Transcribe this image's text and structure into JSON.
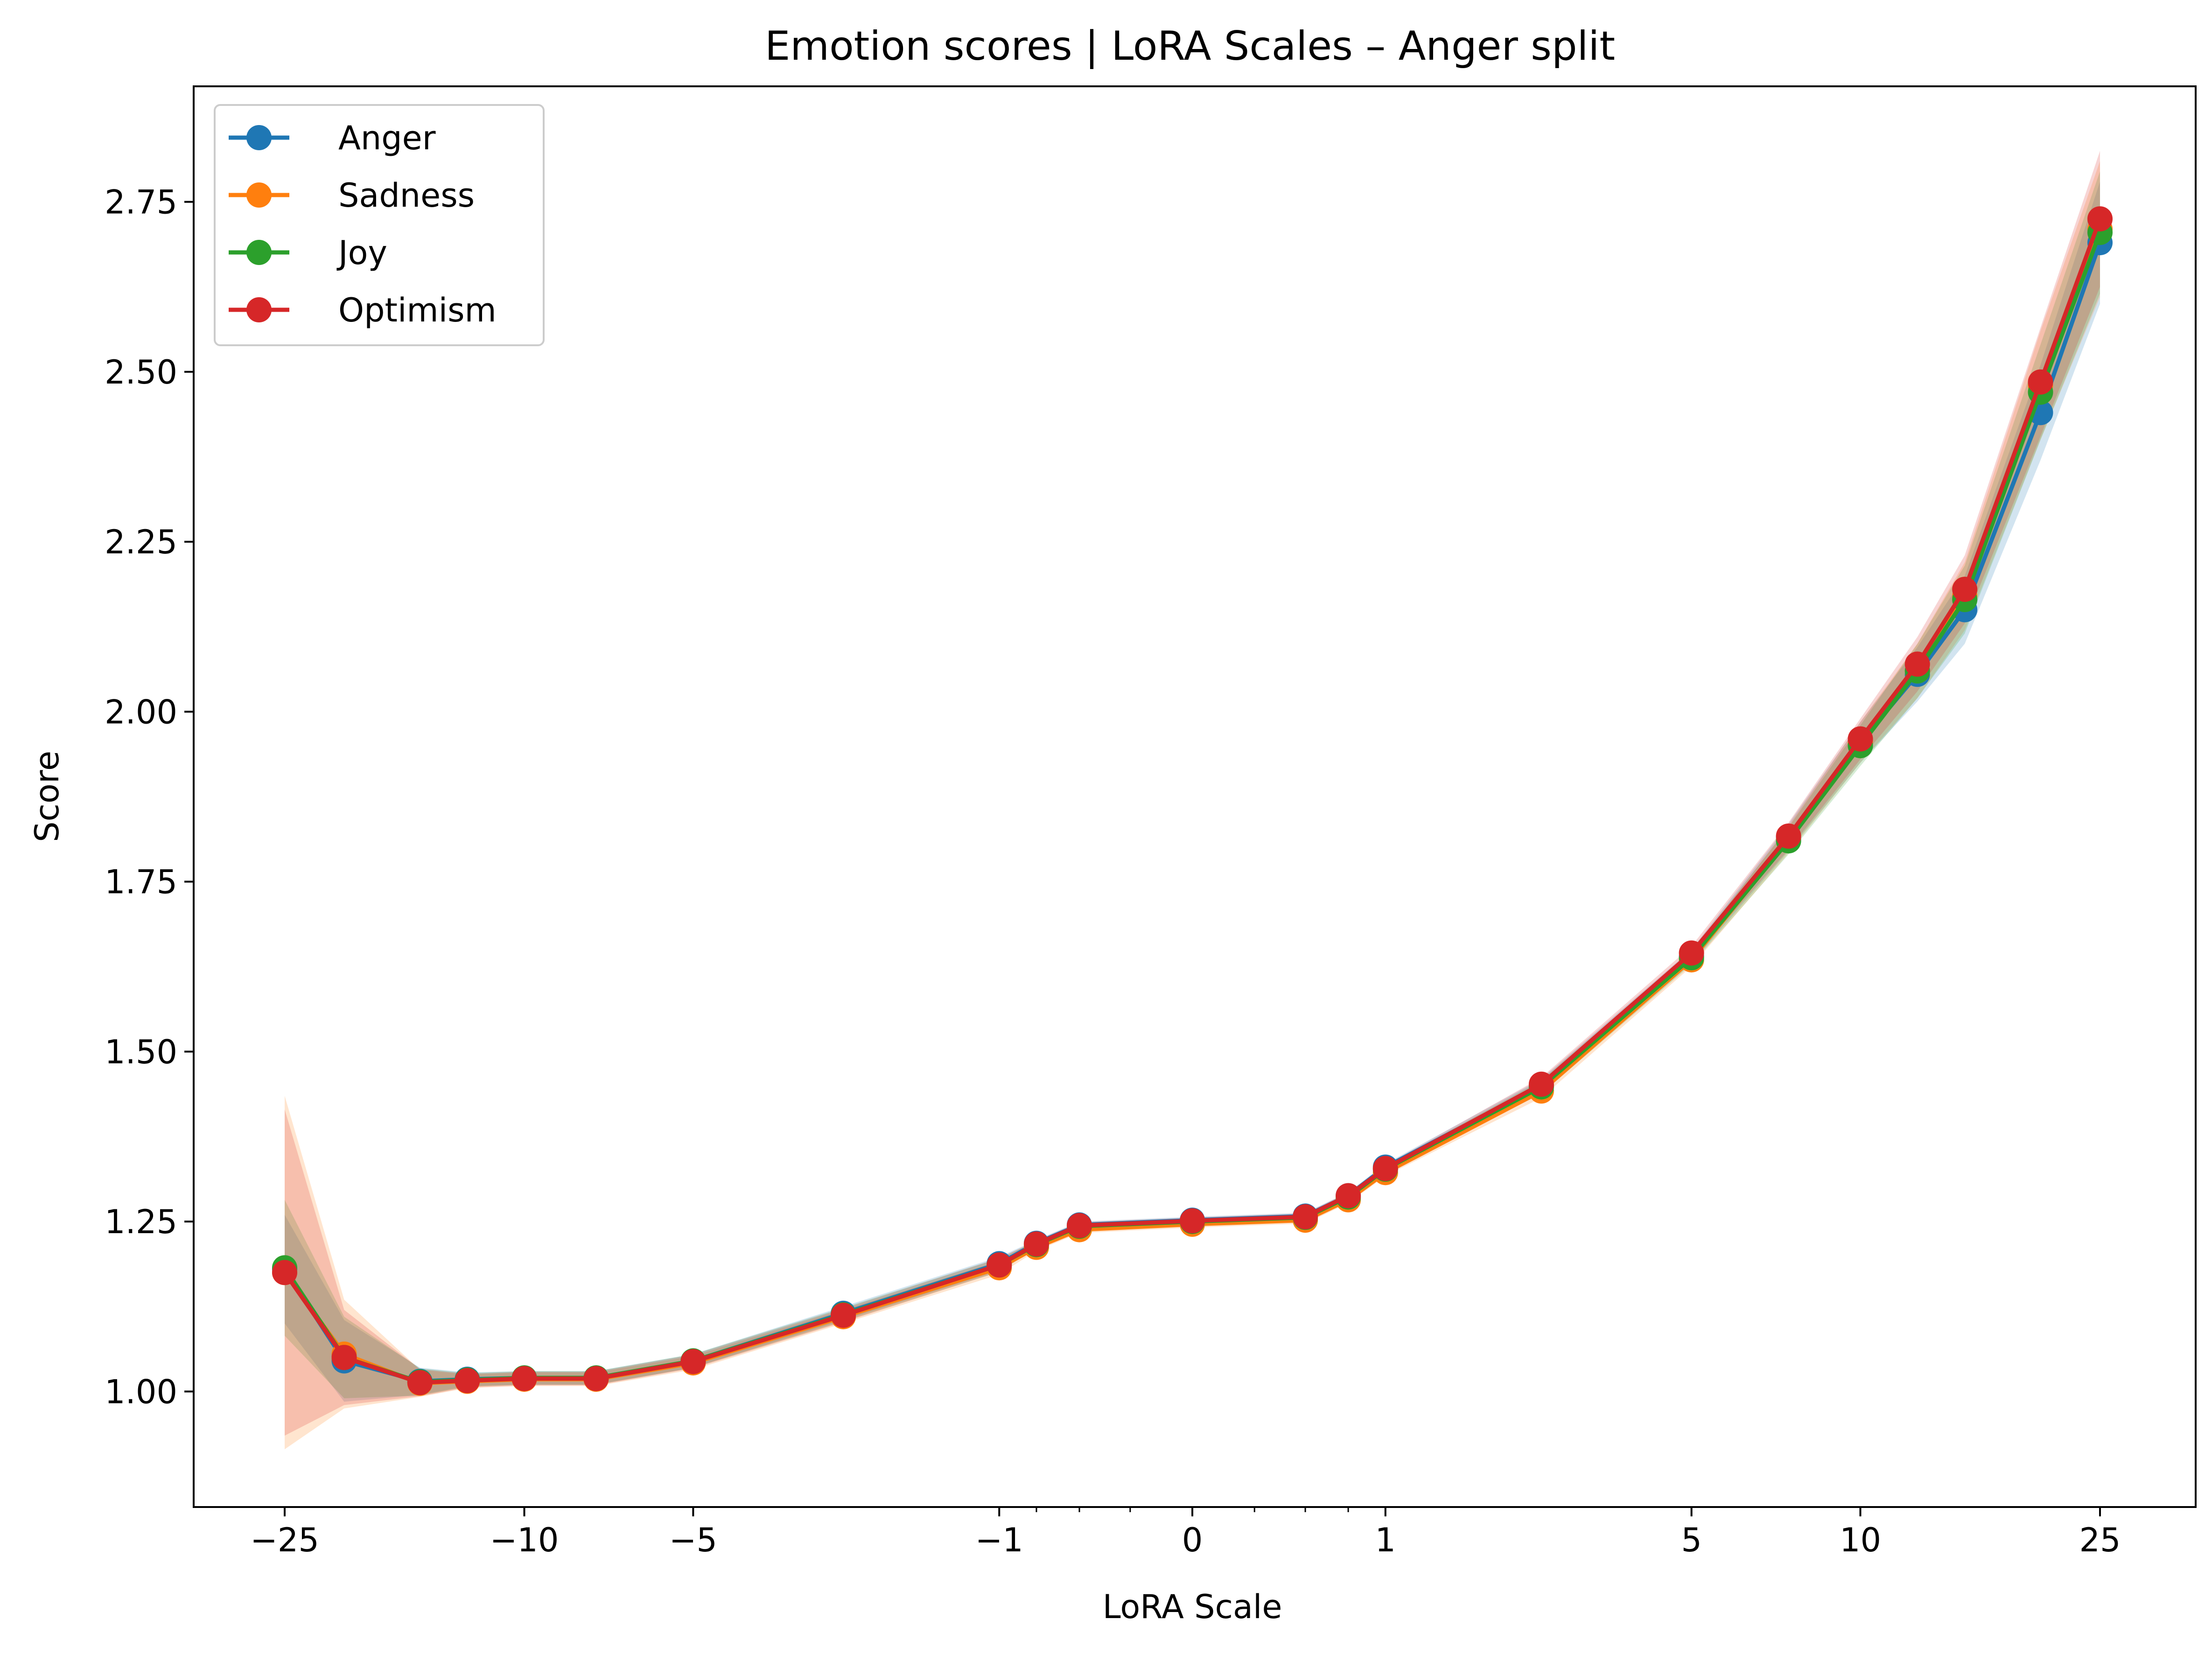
{
  "chart_data": {
    "type": "line",
    "title": "Emotion scores | LoRA Scales – Anger split",
    "xlabel": "LoRA Scale",
    "ylabel": "Score",
    "x_scale": "symlog",
    "xlim": [
      -35,
      35
    ],
    "ylim": [
      0.83,
      2.92
    ],
    "grid": false,
    "legend_position": "top-left",
    "x": [
      -25,
      -20,
      -15,
      -12.5,
      -10,
      -7.5,
      -5,
      -2.5,
      -1,
      -0.75,
      -0.5,
      0,
      0.5,
      0.75,
      1,
      2.5,
      5,
      7.5,
      10,
      12.5,
      15,
      20,
      25
    ],
    "x_ticks": [
      {
        "value": -25,
        "label": "−25"
      },
      {
        "value": -10,
        "label": "−10"
      },
      {
        "value": -5,
        "label": "−5"
      },
      {
        "value": -1,
        "label": "−1"
      },
      {
        "value": 0,
        "label": "0"
      },
      {
        "value": 1,
        "label": "1"
      },
      {
        "value": 5,
        "label": "5"
      },
      {
        "value": 10,
        "label": "10"
      },
      {
        "value": 25,
        "label": "25"
      }
    ],
    "x_minor_ticks": [
      -0.75,
      -0.5,
      -0.25,
      0.25,
      0.5,
      0.75
    ],
    "y_ticks": [
      {
        "value": 1.0,
        "label": "1.00"
      },
      {
        "value": 1.25,
        "label": "1.25"
      },
      {
        "value": 1.5,
        "label": "1.50"
      },
      {
        "value": 1.75,
        "label": "1.75"
      },
      {
        "value": 2.0,
        "label": "2.00"
      },
      {
        "value": 2.25,
        "label": "2.25"
      },
      {
        "value": 2.5,
        "label": "2.50"
      },
      {
        "value": 2.75,
        "label": "2.75"
      }
    ],
    "series": [
      {
        "name": "Anger",
        "color": "#1f77b4",
        "values": [
          1.18,
          1.045,
          1.015,
          1.018,
          1.02,
          1.02,
          1.045,
          1.115,
          1.188,
          1.218,
          1.245,
          1.252,
          1.258,
          1.288,
          1.33,
          1.45,
          1.64,
          1.815,
          1.955,
          2.055,
          2.15,
          2.44,
          2.69
        ],
        "band": [
          0.08,
          0.06,
          0.02,
          0.01,
          0.01,
          0.01,
          0.01,
          0.01,
          0.01,
          0.005,
          0.005,
          0.005,
          0.005,
          0.005,
          0.005,
          0.01,
          0.01,
          0.02,
          0.03,
          0.04,
          0.05,
          0.07,
          0.09
        ]
      },
      {
        "name": "Sadness",
        "color": "#ff7f0e",
        "values": [
          1.175,
          1.055,
          1.012,
          1.015,
          1.018,
          1.018,
          1.042,
          1.11,
          1.182,
          1.212,
          1.238,
          1.246,
          1.252,
          1.282,
          1.322,
          1.442,
          1.635,
          1.812,
          1.955,
          2.06,
          2.17,
          2.48,
          2.71
        ],
        "band": [
          0.26,
          0.08,
          0.02,
          0.01,
          0.01,
          0.01,
          0.01,
          0.01,
          0.01,
          0.005,
          0.005,
          0.005,
          0.005,
          0.005,
          0.005,
          0.01,
          0.01,
          0.02,
          0.03,
          0.04,
          0.05,
          0.08,
          0.1
        ]
      },
      {
        "name": "Joy",
        "color": "#2ca02c",
        "values": [
          1.182,
          1.05,
          1.014,
          1.017,
          1.02,
          1.02,
          1.045,
          1.113,
          1.186,
          1.216,
          1.243,
          1.25,
          1.256,
          1.286,
          1.327,
          1.448,
          1.638,
          1.81,
          1.95,
          2.06,
          2.165,
          2.47,
          2.705
        ],
        "band": [
          0.1,
          0.06,
          0.02,
          0.01,
          0.01,
          0.01,
          0.01,
          0.01,
          0.01,
          0.005,
          0.005,
          0.005,
          0.005,
          0.005,
          0.005,
          0.01,
          0.01,
          0.02,
          0.03,
          0.04,
          0.05,
          0.07,
          0.09
        ]
      },
      {
        "name": "Optimism",
        "color": "#d62728",
        "values": [
          1.175,
          1.05,
          1.013,
          1.016,
          1.019,
          1.019,
          1.044,
          1.112,
          1.186,
          1.217,
          1.244,
          1.251,
          1.257,
          1.288,
          1.328,
          1.452,
          1.645,
          1.817,
          1.96,
          2.07,
          2.18,
          2.485,
          2.725
        ],
        "band": [
          0.24,
          0.07,
          0.02,
          0.01,
          0.01,
          0.01,
          0.01,
          0.01,
          0.01,
          0.005,
          0.005,
          0.005,
          0.005,
          0.005,
          0.005,
          0.01,
          0.01,
          0.02,
          0.03,
          0.04,
          0.05,
          0.08,
          0.1
        ]
      }
    ]
  }
}
